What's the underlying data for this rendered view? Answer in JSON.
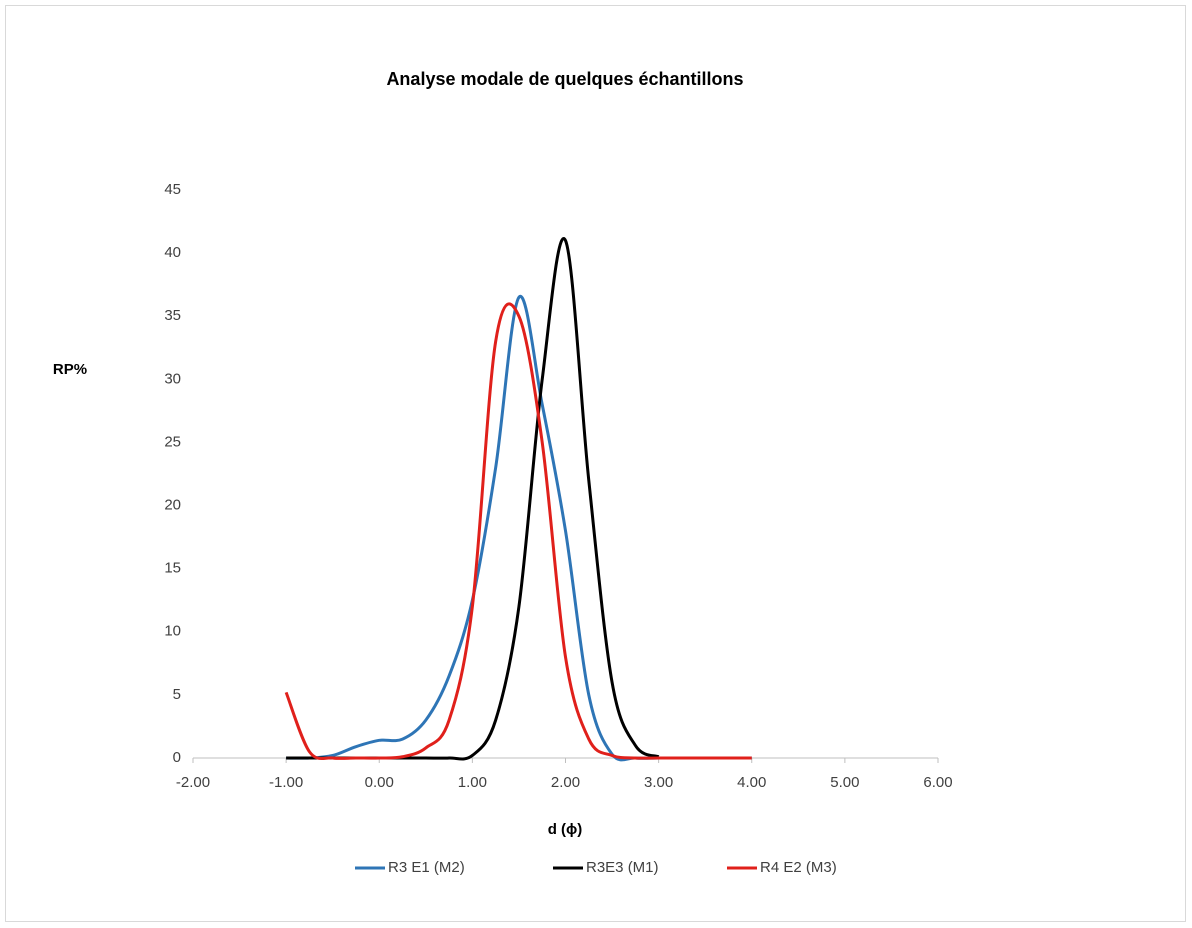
{
  "chart_data": {
    "type": "line",
    "title": "Analyse modale de quelques échantillons",
    "y_label": "RP%",
    "x_label": "d (ϕ)",
    "x": [
      -1,
      -0.75,
      -0.5,
      -0.25,
      0,
      0.25,
      0.5,
      0.75,
      1,
      1.25,
      1.5,
      1.75,
      2,
      2.25,
      2.5,
      2.75,
      3,
      3.25,
      3.5,
      3.75,
      4
    ],
    "series": [
      {
        "name": "R3 E1 (M2)",
        "color": "#2e75b6",
        "values": [
          0,
          0,
          0.2,
          0.9,
          1.4,
          1.5,
          3,
          6.5,
          12.5,
          23,
          36.5,
          28,
          18,
          5,
          0.3,
          0,
          0,
          0,
          0,
          0,
          0
        ]
      },
      {
        "name": "R3E3 (M1)",
        "color": "#000000",
        "values": [
          0,
          0,
          0,
          0,
          0,
          0,
          0,
          0,
          0.2,
          3,
          12,
          30,
          41,
          22,
          6,
          1,
          0.1,
          null,
          null,
          null,
          null
        ]
      },
      {
        "name": "R4 E2 (M3)",
        "color": "#e0201b",
        "values": [
          5.2,
          0.5,
          0,
          0,
          0,
          0.1,
          0.8,
          3,
          12,
          33,
          35,
          25,
          8,
          1.5,
          0.2,
          0,
          0,
          0,
          0,
          0,
          0
        ]
      }
    ],
    "xlim": [
      -2,
      6
    ],
    "xticks": [
      {
        "value": -2,
        "label": "-2.00"
      },
      {
        "value": -1,
        "label": "-1.00"
      },
      {
        "value": 0,
        "label": "0.00"
      },
      {
        "value": 1,
        "label": "1.00"
      },
      {
        "value": 2,
        "label": "2.00"
      },
      {
        "value": 3,
        "label": "3.00"
      },
      {
        "value": 4,
        "label": "4.00"
      },
      {
        "value": 5,
        "label": "5.00"
      },
      {
        "value": 6,
        "label": "6.00"
      }
    ],
    "ylim": [
      0,
      45
    ],
    "yticks": [
      0,
      5,
      10,
      15,
      20,
      25,
      30,
      35,
      40,
      45
    ],
    "grid": false,
    "legend": "bottom"
  }
}
